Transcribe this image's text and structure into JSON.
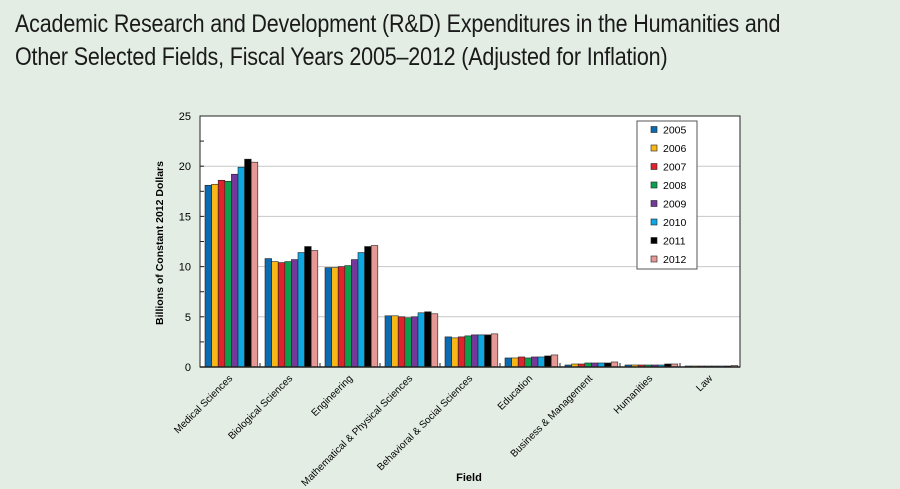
{
  "page": {
    "title_lines": [
      "Academic Research and Development (R&D) Expenditures in the Humanities and",
      "Other Selected Fields, Fiscal Years 2005–2012 (Adjusted for Inflation)"
    ]
  },
  "chart_data": {
    "type": "bar",
    "title": "Academic Research and Development (R&D) Expenditures in the Humanities and Other Selected Fields, Fiscal Years 2005–2012 (Adjusted for Inflation)",
    "xlabel": "Field",
    "ylabel": "Billions of Constant 2012 Dollars",
    "ylim": [
      0,
      25
    ],
    "yticks": [
      0,
      5,
      10,
      15,
      20,
      25
    ],
    "grid": true,
    "legend_position": "top-right",
    "categories": [
      "Medical Sciences",
      "Biological Sciences",
      "Engineering",
      "Mathematical & Physical Sciences",
      "Behavioral & Social Sciences",
      "Education",
      "Business & Management",
      "Humanities",
      "Law"
    ],
    "series": [
      {
        "name": "2005",
        "color": "#0b6ab0",
        "values": [
          18.1,
          10.8,
          9.9,
          5.1,
          3.0,
          0.9,
          0.2,
          0.2,
          0.1
        ]
      },
      {
        "name": "2006",
        "color": "#f7b817",
        "values": [
          18.2,
          10.5,
          9.9,
          5.1,
          2.9,
          0.9,
          0.3,
          0.2,
          0.1
        ]
      },
      {
        "name": "2007",
        "color": "#e0232b",
        "values": [
          18.6,
          10.4,
          10.0,
          5.0,
          3.0,
          1.0,
          0.3,
          0.2,
          0.1
        ]
      },
      {
        "name": "2008",
        "color": "#0aa04d",
        "values": [
          18.5,
          10.5,
          10.1,
          4.9,
          3.1,
          0.9,
          0.4,
          0.2,
          0.1
        ]
      },
      {
        "name": "2009",
        "color": "#74379a",
        "values": [
          19.2,
          10.7,
          10.7,
          5.0,
          3.2,
          1.0,
          0.4,
          0.2,
          0.1
        ]
      },
      {
        "name": "2010",
        "color": "#0ea7e2",
        "values": [
          19.9,
          11.4,
          11.4,
          5.4,
          3.2,
          1.0,
          0.4,
          0.2,
          0.1
        ]
      },
      {
        "name": "2011",
        "color": "#000000",
        "values": [
          20.7,
          12.0,
          12.0,
          5.5,
          3.2,
          1.1,
          0.4,
          0.3,
          0.1
        ]
      },
      {
        "name": "2012",
        "color": "#e59894",
        "values": [
          20.4,
          11.6,
          12.1,
          5.3,
          3.3,
          1.2,
          0.5,
          0.3,
          0.15
        ]
      }
    ]
  }
}
